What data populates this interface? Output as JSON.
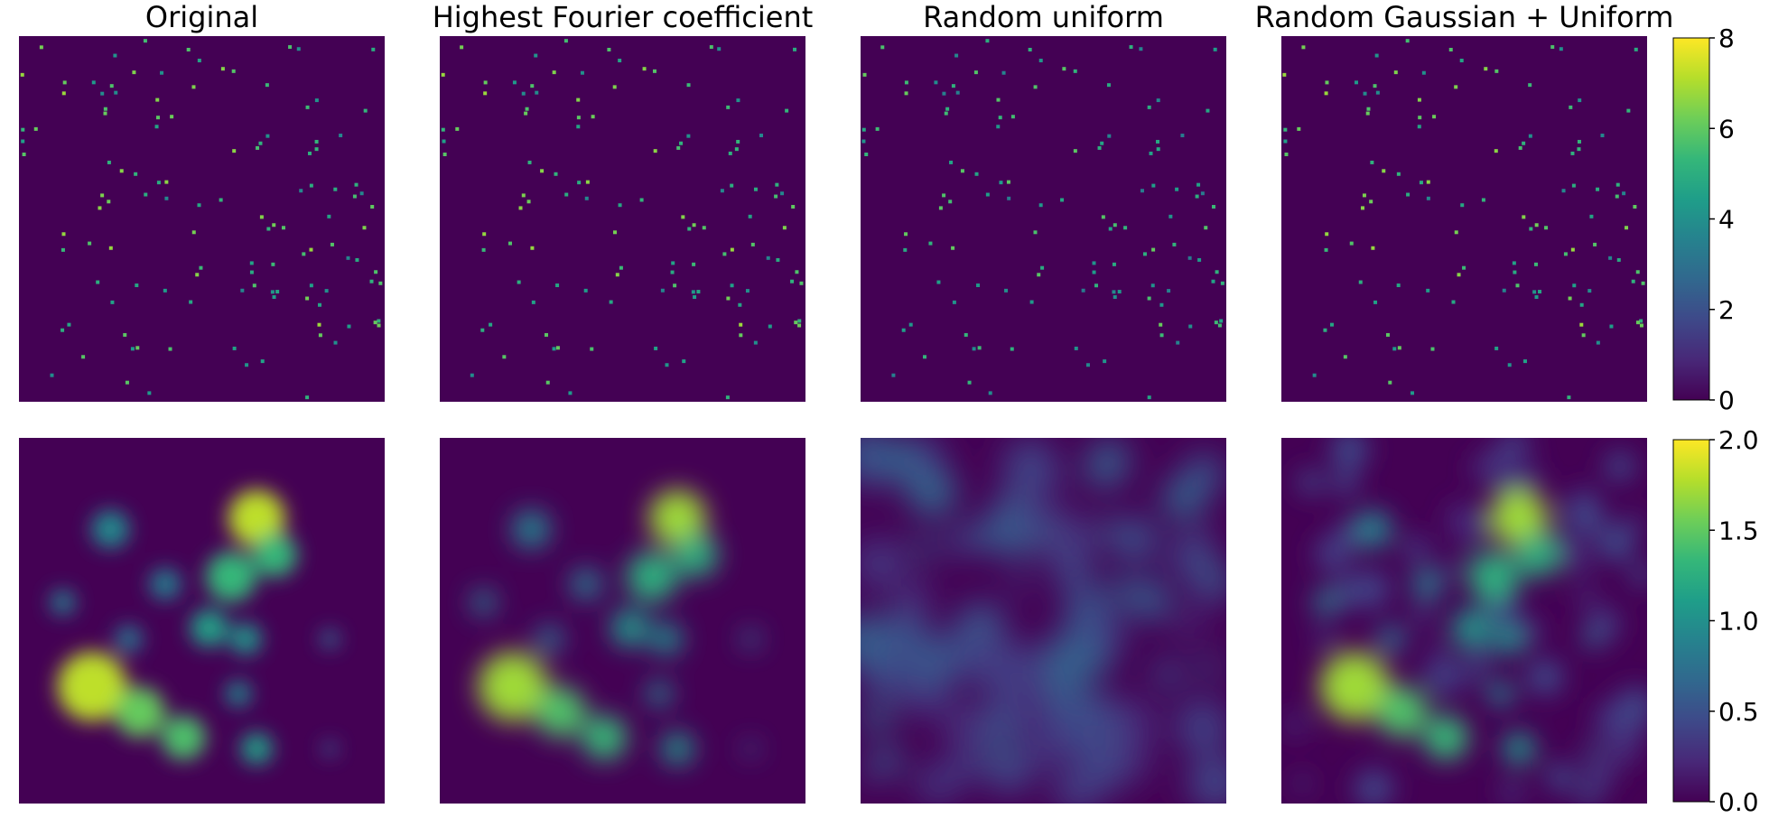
{
  "figure": {
    "colormap": "viridis",
    "colormap_stops": [
      "#440154",
      "#482878",
      "#3e4989",
      "#31688e",
      "#26828e",
      "#1f9e89",
      "#35b779",
      "#6ece58",
      "#b5de2b",
      "#fde725"
    ],
    "background": "#ffffff"
  },
  "chart_data": [
    {
      "type": "heatmap",
      "title": "Original",
      "row": "top",
      "content": "sparse point field: isolated bright pixels on a dark background",
      "clim": [
        0,
        8
      ],
      "xlabel": "",
      "ylabel": "",
      "axes_visible": false
    },
    {
      "type": "heatmap",
      "title": "Highest Fourier coefficient",
      "row": "top",
      "content": "sparse point field: isolated bright pixels on a dark background",
      "clim": [
        0,
        8
      ],
      "xlabel": "",
      "ylabel": "",
      "axes_visible": false
    },
    {
      "type": "heatmap",
      "title": "Random uniform",
      "row": "top",
      "content": "sparse point field: isolated bright pixels on a dark background",
      "clim": [
        0,
        8
      ],
      "xlabel": "",
      "ylabel": "",
      "axes_visible": false
    },
    {
      "type": "heatmap",
      "title": "Random Gaussian + Uniform",
      "row": "top",
      "content": "sparse point field: isolated bright pixels on a dark background",
      "clim": [
        0,
        8
      ],
      "xlabel": "",
      "ylabel": "",
      "axes_visible": false
    },
    {
      "type": "heatmap",
      "title": "",
      "row": "bottom",
      "content": "smooth density map with clustered blobs",
      "clim": [
        0,
        2
      ],
      "peak": 1.9,
      "xlabel": "",
      "ylabel": "",
      "axes_visible": false
    },
    {
      "type": "heatmap",
      "title": "",
      "row": "bottom",
      "content": "blurred density map similar to original",
      "clim": [
        0,
        2
      ],
      "peak": 1.8,
      "xlabel": "",
      "ylabel": "",
      "axes_visible": false
    },
    {
      "type": "heatmap",
      "title": "",
      "row": "bottom",
      "content": "faint noisy density, mostly low values",
      "clim": [
        0,
        2
      ],
      "peak": 0.6,
      "xlabel": "",
      "ylabel": "",
      "axes_visible": false
    },
    {
      "type": "heatmap",
      "title": "",
      "row": "bottom",
      "content": "noisy density map similar to original",
      "clim": [
        0,
        2
      ],
      "peak": 1.8,
      "xlabel": "",
      "ylabel": "",
      "axes_visible": false
    }
  ],
  "colorbars": [
    {
      "row": "top",
      "range": [
        0,
        8
      ],
      "tick_values": [
        0,
        2,
        4,
        6,
        8
      ],
      "tick_labels": [
        "0",
        "2",
        "4",
        "6",
        "8"
      ]
    },
    {
      "row": "bottom",
      "range": [
        0,
        2
      ],
      "tick_values": [
        0.0,
        0.5,
        1.0,
        1.5,
        2.0
      ],
      "tick_labels": [
        "0.0",
        "0.5",
        "1.0",
        "1.5",
        "2.0"
      ]
    }
  ]
}
